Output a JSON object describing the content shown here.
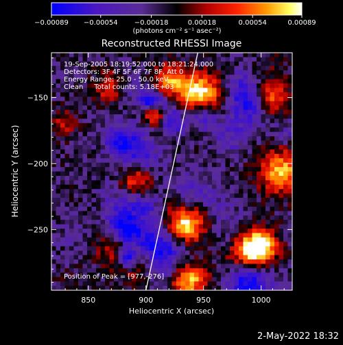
{
  "chart_data": {
    "type": "heatmap",
    "title": "Reconstructed RHESSI Image",
    "xlabel": "Heliocentric X (arcsec)",
    "ylabel": "Heliocentric Y (arcsec)",
    "xlim": [
      818,
      1027
    ],
    "ylim": [
      -296,
      -116
    ],
    "xticks": [
      850,
      900,
      950,
      1000
    ],
    "yticks": [
      -150,
      -200,
      -250
    ],
    "xtick_labels": [
      "850",
      "900",
      "950",
      "1000"
    ],
    "ytick_labels": [
      "−150",
      "−200",
      "−250"
    ],
    "colorbar": {
      "ticks": [
        -0.00089,
        -0.00054,
        -0.00018,
        0.00018,
        0.00054,
        0.00089
      ],
      "tick_labels": [
        "−0.00089",
        "−0.00054",
        "−0.00018",
        "0.00018",
        "0.00054",
        "0.00089"
      ],
      "units_label": "(photons cm⁻² s⁻¹ asec⁻²)",
      "colors": [
        "#0000ff",
        "#5a1faa",
        "#5a2c96",
        "#000000",
        "#b40000",
        "#ff3000",
        "#ff9a00",
        "#ffff80",
        "#ffffff"
      ]
    },
    "annotations": [
      "19-Sep-2005 18:19:52.000 to 18:21:24.000",
      "Detectors: 3F 4F 5F 6F 7F 8F, Att 0",
      "Energy Range: 25.0 - 50.0 keV",
      "Clean     Total counts: 5.18E+03"
    ],
    "peak_label": "Position of Peak = [977,-276]",
    "limb_line": [
      [
        900,
        -296
      ],
      [
        945,
        -116
      ]
    ],
    "grid": false
  },
  "footer": {
    "timestamp": "2-May-2022 18:32"
  }
}
